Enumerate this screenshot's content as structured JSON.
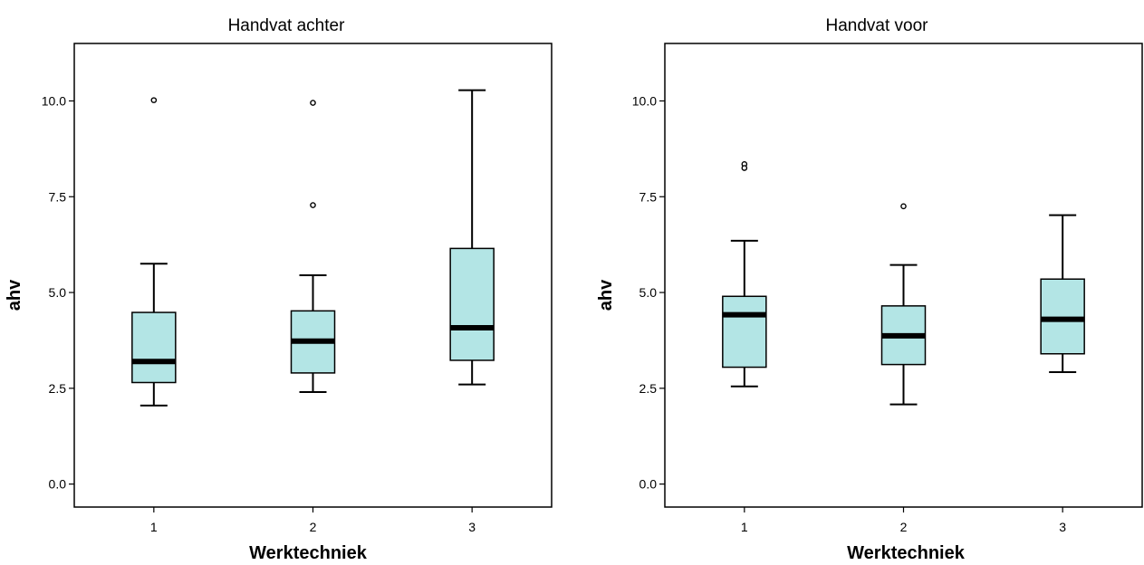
{
  "chart_data": [
    {
      "type": "boxplot",
      "title": "Handvat achter",
      "xlabel": "Werktechniek",
      "ylabel": "ahv",
      "ylim": [
        -0.6,
        11.5
      ],
      "yticks": [
        0.0,
        2.5,
        5.0,
        7.5,
        10.0
      ],
      "ytick_labels": [
        "0.0",
        "2.5",
        "5.0",
        "7.5",
        "10.0"
      ],
      "categories": [
        "1",
        "2",
        "3"
      ],
      "box_color": "#b3e5e5",
      "boxes": [
        {
          "category": "1",
          "whisker_low": 2.05,
          "q1": 2.65,
          "median": 3.2,
          "q3": 4.48,
          "whisker_high": 5.75,
          "outliers": [
            10.02
          ]
        },
        {
          "category": "2",
          "whisker_low": 2.4,
          "q1": 2.9,
          "median": 3.73,
          "q3": 4.52,
          "whisker_high": 5.45,
          "outliers": [
            9.95,
            7.28
          ]
        },
        {
          "category": "3",
          "whisker_low": 2.6,
          "q1": 3.23,
          "median": 4.08,
          "q3": 6.15,
          "whisker_high": 10.28,
          "outliers": []
        }
      ]
    },
    {
      "type": "boxplot",
      "title": "Handvat voor",
      "xlabel": "Werktechniek",
      "ylabel": "ahv",
      "ylim": [
        -0.6,
        11.5
      ],
      "yticks": [
        0.0,
        2.5,
        5.0,
        7.5,
        10.0
      ],
      "ytick_labels": [
        "0.0",
        "2.5",
        "5.0",
        "7.5",
        "10.0"
      ],
      "categories": [
        "1",
        "2",
        "3"
      ],
      "box_color": "#b3e5e5",
      "boxes": [
        {
          "category": "1",
          "whisker_low": 2.55,
          "q1": 3.05,
          "median": 4.42,
          "q3": 4.9,
          "whisker_high": 6.35,
          "outliers": [
            8.35,
            8.25
          ]
        },
        {
          "category": "2",
          "whisker_low": 2.08,
          "q1": 3.12,
          "median": 3.87,
          "q3": 4.65,
          "whisker_high": 5.72,
          "outliers": [
            7.25
          ]
        },
        {
          "category": "3",
          "whisker_low": 2.92,
          "q1": 3.4,
          "median": 4.3,
          "q3": 5.35,
          "whisker_high": 7.02,
          "outliers": []
        }
      ]
    }
  ]
}
